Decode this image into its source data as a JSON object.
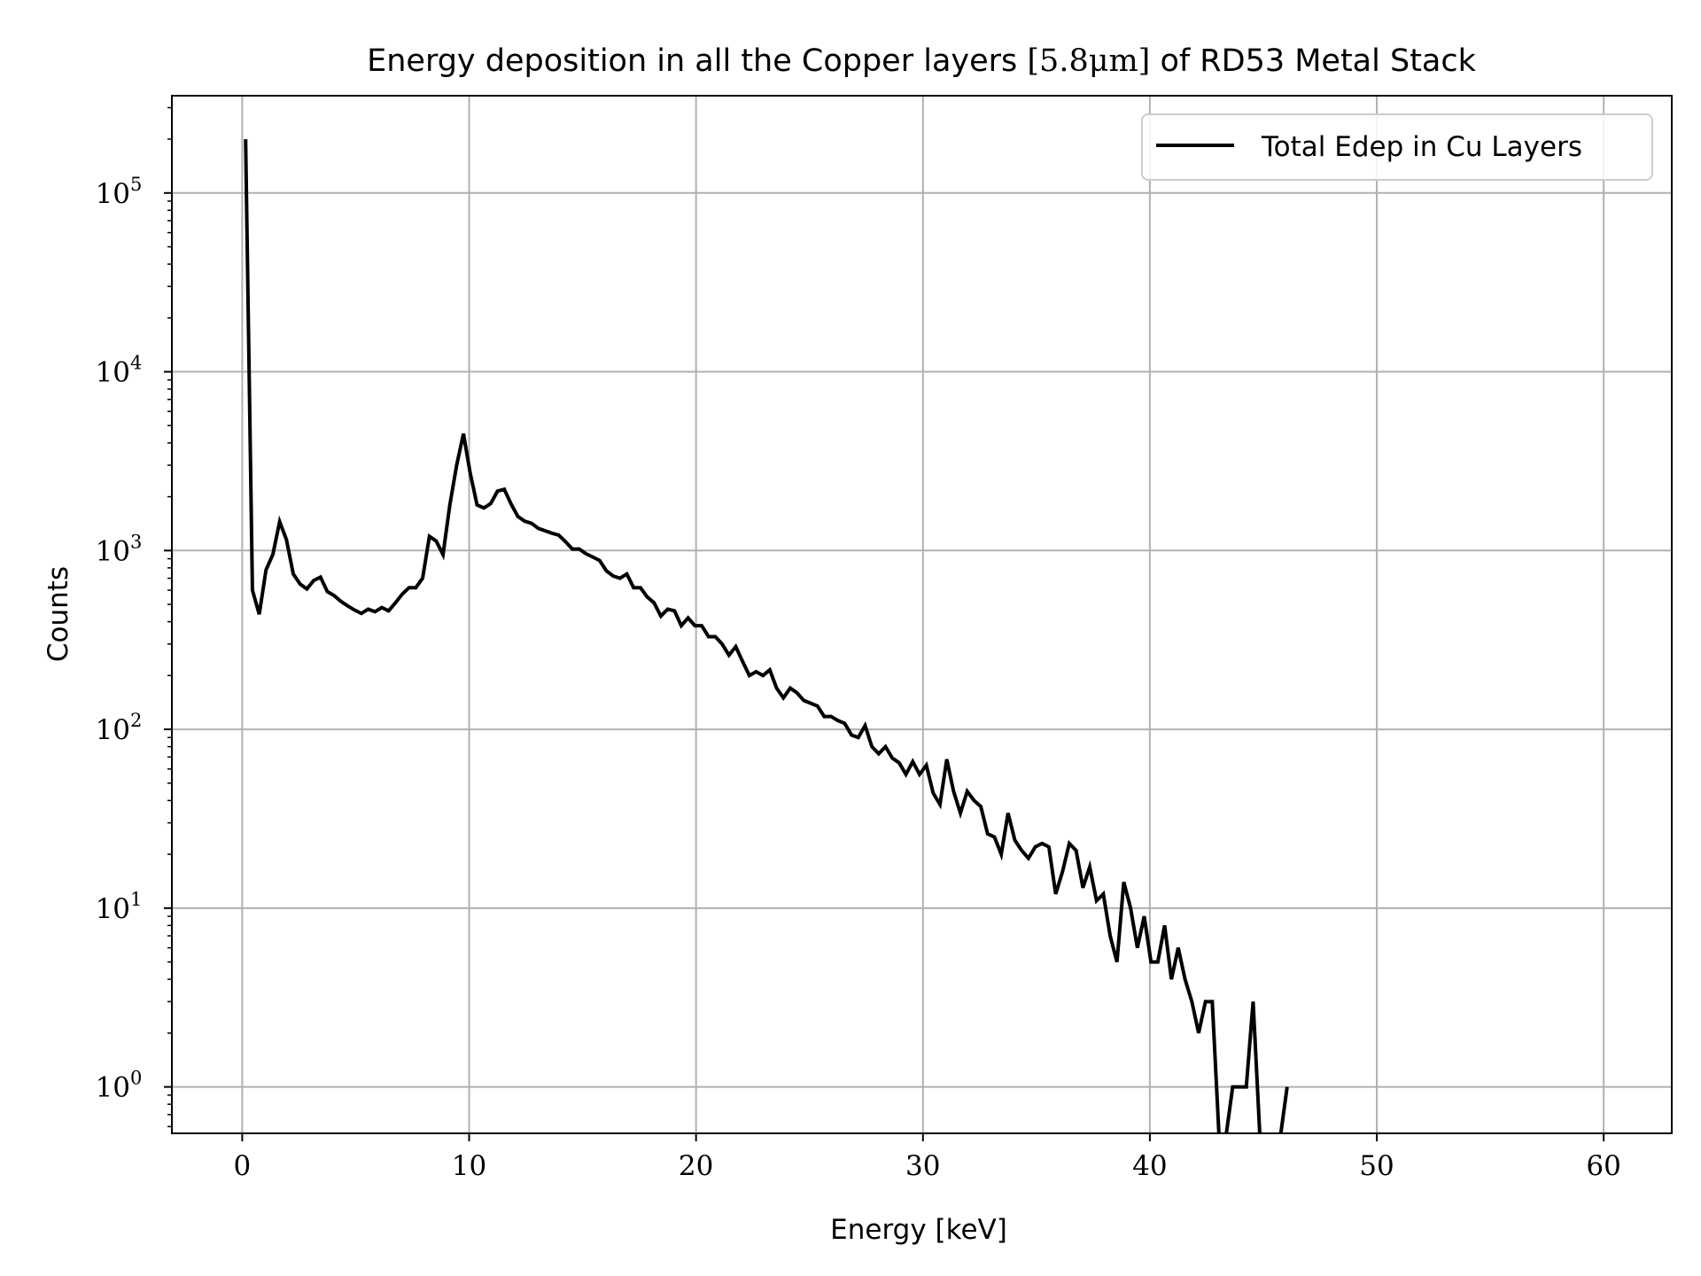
{
  "chart_data": {
    "type": "line",
    "title": {
      "prefix": "Energy deposition in all the Copper layers ",
      "math": "[5.8μm]",
      "suffix": " of RD53 Metal Stack"
    },
    "xlabel": "Energy [keV]",
    "ylabel": "Counts",
    "xlim": [
      -3.1,
      63
    ],
    "ylim": [
      0.55,
      350000
    ],
    "yscale": "log",
    "grid": true,
    "legend_position": "top-right",
    "x_ticks": [
      "0",
      "10",
      "20",
      "30",
      "40",
      "50",
      "60"
    ],
    "y_ticks": [
      {
        "base": "10",
        "exp": "0"
      },
      {
        "base": "10",
        "exp": "1"
      },
      {
        "base": "10",
        "exp": "2"
      },
      {
        "base": "10",
        "exp": "3"
      },
      {
        "base": "10",
        "exp": "4"
      },
      {
        "base": "10",
        "exp": "5"
      }
    ],
    "line_color": "#000000",
    "series": [
      {
        "name": "Total Edep in Cu Layers",
        "x": [
          0.15,
          0.45,
          0.75,
          1.05,
          1.35,
          1.65,
          1.95,
          2.25,
          2.55,
          2.85,
          3.15,
          3.45,
          3.75,
          4.05,
          4.35,
          4.65,
          4.95,
          5.25,
          5.55,
          5.85,
          6.15,
          6.45,
          6.75,
          7.05,
          7.35,
          7.65,
          7.95,
          8.25,
          8.55,
          8.85,
          9.15,
          9.45,
          9.75,
          10.05,
          10.35,
          10.65,
          10.95,
          11.25,
          11.55,
          11.85,
          12.15,
          12.45,
          12.75,
          13.05,
          13.35,
          13.65,
          13.95,
          14.25,
          14.55,
          14.85,
          15.15,
          15.45,
          15.75,
          16.05,
          16.35,
          16.65,
          16.95,
          17.25,
          17.55,
          17.85,
          18.15,
          18.45,
          18.75,
          19.05,
          19.35,
          19.65,
          19.95,
          20.25,
          20.55,
          20.85,
          21.15,
          21.45,
          21.75,
          22.05,
          22.35,
          22.65,
          22.95,
          23.25,
          23.55,
          23.85,
          24.15,
          24.45,
          24.75,
          25.05,
          25.35,
          25.65,
          25.95,
          26.25,
          26.55,
          26.85,
          27.15,
          27.45,
          27.75,
          28.05,
          28.35,
          28.65,
          28.95,
          29.25,
          29.55,
          29.85,
          30.15,
          30.45,
          30.75,
          31.05,
          31.35,
          31.65,
          31.95,
          32.25,
          32.55,
          32.85,
          33.15,
          33.45,
          33.75,
          34.05,
          34.35,
          34.65,
          34.95,
          35.25,
          35.55,
          35.85,
          36.15,
          36.45,
          36.75,
          37.05,
          37.35,
          37.65,
          37.95,
          38.25,
          38.55,
          38.85,
          39.15,
          39.45,
          39.75,
          40.05,
          40.35,
          40.65,
          40.95,
          41.25,
          41.55,
          41.85,
          42.15,
          42.45,
          42.75,
          43.05,
          43.35,
          43.65,
          43.95,
          44.25,
          44.55,
          44.85,
          45.15,
          45.45,
          45.75,
          46.05
        ],
        "values": [
          200000,
          600,
          440,
          780,
          950,
          1450,
          1150,
          740,
          650,
          610,
          680,
          710,
          590,
          560,
          520,
          490,
          465,
          445,
          470,
          455,
          480,
          460,
          510,
          570,
          620,
          620,
          700,
          1200,
          1130,
          950,
          1800,
          3000,
          4500,
          2700,
          1800,
          1730,
          1830,
          2150,
          2200,
          1820,
          1550,
          1460,
          1420,
          1330,
          1290,
          1250,
          1220,
          1120,
          1020,
          1020,
          960,
          920,
          880,
          770,
          720,
          700,
          740,
          620,
          620,
          550,
          510,
          430,
          470,
          460,
          380,
          420,
          380,
          380,
          330,
          330,
          300,
          260,
          290,
          240,
          200,
          210,
          200,
          215,
          170,
          150,
          170,
          160,
          145,
          140,
          135,
          118,
          118,
          112,
          108,
          93,
          90,
          105,
          80,
          73,
          80,
          69,
          65,
          56,
          66,
          56,
          63,
          44,
          38,
          68,
          45,
          34,
          45,
          40,
          37,
          26,
          25,
          20,
          34,
          24,
          21,
          19,
          22,
          23,
          22,
          12,
          16,
          23,
          21,
          13,
          17,
          11,
          12,
          7,
          5,
          14,
          10,
          6,
          9,
          5,
          5,
          8,
          4,
          6,
          4,
          3,
          2,
          3,
          3,
          0,
          0,
          1,
          1,
          1,
          3,
          0,
          0,
          0,
          0,
          1
        ]
      }
    ]
  }
}
